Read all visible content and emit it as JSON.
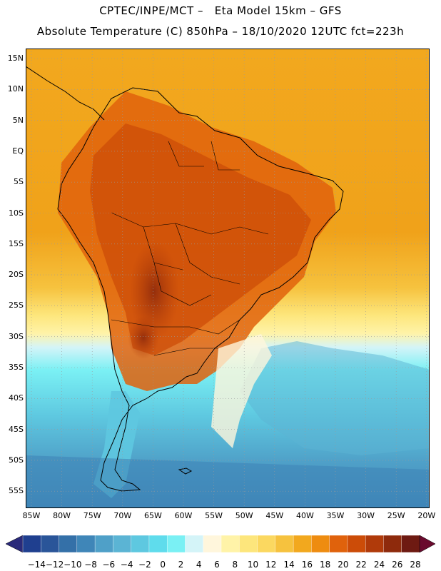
{
  "header": {
    "line1": "CPTEC/INPE/MCT –   Eta Model 15km – GFS",
    "line2": "Absolute Temperature (C) 850hPa – 18/10/2020 12UTC fct=223h"
  },
  "map": {
    "lat_labels": [
      "15N",
      "10N",
      "5N",
      "EQ",
      "5S",
      "10S",
      "15S",
      "20S",
      "25S",
      "30S",
      "35S",
      "40S",
      "45S",
      "50S",
      "55S"
    ],
    "lon_labels": [
      "85W",
      "80W",
      "75W",
      "70W",
      "65W",
      "60W",
      "55W",
      "50W",
      "45W",
      "40W",
      "35W",
      "30W",
      "25W",
      "20W"
    ],
    "lat_range": [
      -58,
      17
    ],
    "lon_range": [
      -86,
      -20
    ],
    "grid": "dotted"
  },
  "colorbar": {
    "labels": [
      "-14",
      "-12",
      "-10",
      "-8",
      "-6",
      "-4",
      "-2",
      "0",
      "2",
      "4",
      "6",
      "8",
      "10",
      "12",
      "14",
      "16",
      "18",
      "20",
      "22",
      "24",
      "26",
      "28"
    ],
    "colors": [
      "#1f3f8f",
      "#2a5599",
      "#3470a8",
      "#3f86b8",
      "#4fa0c8",
      "#5bb4d4",
      "#5ec8e0",
      "#5fdcec",
      "#7af0f4",
      "#d4f4f8",
      "#fff6dc",
      "#fff3a8",
      "#fde67c",
      "#fbd860",
      "#f6c23e",
      "#f2a81e",
      "#ee8c10",
      "#e0620c",
      "#cc4c08",
      "#b03a0a",
      "#8e2a0c",
      "#6e1a12"
    ],
    "left_arrow_color": "#2a2a7a",
    "right_arrow_color": "#6a0a2e"
  }
}
